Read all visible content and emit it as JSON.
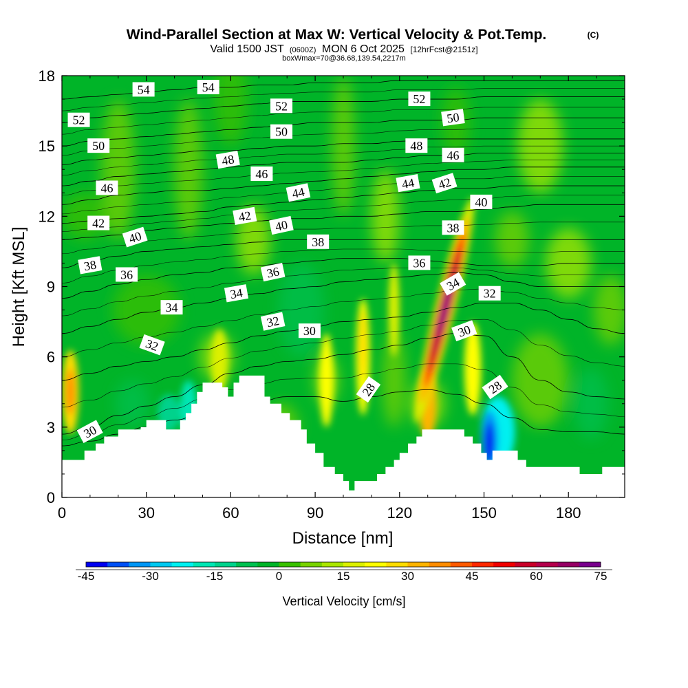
{
  "chart_data": {
    "type": "heatmap",
    "title": "Wind-Parallel Section at Max W: Vertical Velocity & Pot.Temp.",
    "title_mark": "(C)",
    "subtitle": {
      "valid": "Valid 1500 JST",
      "z": "(0600Z)",
      "date": "MON 6 Oct 2025",
      "fcst": "[12hrFcst@2151z]"
    },
    "subtitle2": "boxWmax=70@36.68,139.54,2217m",
    "xlabel": "Distance [nm]",
    "ylabel": "Height [Kft MSL]",
    "xlim": [
      0,
      200
    ],
    "ylim": [
      0,
      18
    ],
    "xticks": [
      0,
      30,
      60,
      90,
      120,
      150,
      180
    ],
    "yticks": [
      0,
      3,
      6,
      9,
      12,
      15,
      18
    ],
    "colorbar": {
      "label": "Vertical Velocity [cm/s]",
      "ticks": [
        -45,
        -30,
        -15,
        0,
        15,
        30,
        45,
        60,
        75
      ],
      "colors": [
        "#0000f0",
        "#0050f5",
        "#0096f5",
        "#00c8f0",
        "#00f0f0",
        "#00e6b4",
        "#00d28c",
        "#00c050",
        "#00b428",
        "#38c000",
        "#78d200",
        "#aae600",
        "#dcf000",
        "#ffff00",
        "#ffdc00",
        "#ffb400",
        "#ff8c00",
        "#ff5a00",
        "#ff2800",
        "#f00000",
        "#c80028",
        "#b4004b",
        "#960064",
        "#78008c"
      ]
    },
    "terrain_height_kft": [
      [
        0,
        1.6
      ],
      [
        5,
        1.6
      ],
      [
        8,
        2.0
      ],
      [
        12,
        2.3
      ],
      [
        15,
        2.6
      ],
      [
        20,
        2.9
      ],
      [
        28,
        3.0
      ],
      [
        30,
        3.3
      ],
      [
        36,
        3.3
      ],
      [
        37,
        2.9
      ],
      [
        40,
        2.9
      ],
      [
        42,
        3.3
      ],
      [
        44,
        3.6
      ],
      [
        46,
        4.0
      ],
      [
        48,
        4.5
      ],
      [
        50,
        4.9
      ],
      [
        55,
        4.9
      ],
      [
        57,
        4.7
      ],
      [
        59,
        4.3
      ],
      [
        61,
        4.9
      ],
      [
        63,
        5.2
      ],
      [
        65,
        5.2
      ],
      [
        68,
        5.2
      ],
      [
        70,
        5.2
      ],
      [
        72,
        4.3
      ],
      [
        74,
        4.0
      ],
      [
        78,
        3.6
      ],
      [
        81,
        3.3
      ],
      [
        85,
        2.9
      ],
      [
        87,
        2.3
      ],
      [
        90,
        1.9
      ],
      [
        93,
        1.3
      ],
      [
        97,
        1.0
      ],
      [
        100,
        0.7
      ],
      [
        102,
        0.3
      ],
      [
        104,
        0.7
      ],
      [
        110,
        0.7
      ],
      [
        112,
        1.0
      ],
      [
        115,
        1.3
      ],
      [
        118,
        1.6
      ],
      [
        120,
        1.9
      ],
      [
        123,
        2.3
      ],
      [
        126,
        2.6
      ],
      [
        128,
        2.9
      ],
      [
        135,
        2.9
      ],
      [
        140,
        2.9
      ],
      [
        143,
        2.6
      ],
      [
        146,
        2.3
      ],
      [
        149,
        1.9
      ],
      [
        151,
        1.6
      ],
      [
        153,
        2.0
      ],
      [
        158,
        2.0
      ],
      [
        162,
        1.6
      ],
      [
        165,
        1.3
      ],
      [
        183,
        1.3
      ],
      [
        184,
        1.0
      ],
      [
        190,
        1.0
      ],
      [
        192,
        1.3
      ],
      [
        200,
        1.3
      ]
    ],
    "vertical_velocity_features": [
      {
        "x": 136,
        "y": 8.0,
        "w": 70,
        "desc": "max updraft"
      },
      {
        "x": 152,
        "y": 2.5,
        "w": -40,
        "desc": "downdraft"
      },
      {
        "x": 3,
        "y": 4.5,
        "w": 25
      },
      {
        "x": 107,
        "y": 6.0,
        "w": 20
      },
      {
        "x": 45,
        "y": 3.8,
        "w": -20
      }
    ],
    "theta_contours_C": [
      {
        "value": 28,
        "y_kft": [
          2.2,
          2.4,
          2.7,
          3.0,
          3.3,
          3.6,
          3.9,
          4.1,
          4.3,
          4.3,
          4.1,
          4.3,
          4.5,
          4.6,
          4.4,
          4.0,
          3.4,
          2.9,
          2.8,
          2.8,
          2.7
        ]
      },
      {
        "value": 30,
        "y_kft": [
          2.7,
          3.0,
          3.5,
          3.9,
          4.3,
          4.8,
          5.3,
          5.6,
          5.8,
          5.9,
          6.1,
          6.3,
          6.5,
          6.8,
          7.0,
          6.9,
          6.0,
          5.0,
          4.5,
          4.3,
          4.2
        ]
      },
      {
        "value": 32,
        "y_kft": [
          5.0,
          5.3,
          5.6,
          5.8,
          6.0,
          6.3,
          6.6,
          6.9,
          7.1,
          7.3,
          7.5,
          7.6,
          7.7,
          7.9,
          8.1,
          8.3,
          8.3,
          8.0,
          7.6,
          7.2,
          7.0
        ]
      },
      {
        "value": 34,
        "y_kft": [
          7.0,
          7.3,
          7.6,
          7.9,
          8.1,
          8.3,
          8.5,
          8.7,
          8.9,
          9.0,
          9.2,
          9.3,
          9.4,
          9.5,
          9.6,
          9.5,
          9.2,
          9.0,
          9.0,
          9.0,
          9.0
        ]
      },
      {
        "value": 36,
        "y_kft": [
          8.5,
          8.8,
          9.1,
          9.3,
          9.5,
          9.6,
          9.8,
          9.9,
          10.0,
          10.1,
          10.2,
          10.2,
          10.2,
          10.1,
          10.0,
          9.9,
          9.9,
          9.9,
          10.0,
          10.0,
          10.0
        ]
      },
      {
        "value": 38,
        "y_kft": [
          9.8,
          10.1,
          10.3,
          10.5,
          10.6,
          10.7,
          10.8,
          10.9,
          11.0,
          11.0,
          11.0,
          11.0,
          11.0,
          11.0,
          11.0,
          11.0,
          11.0,
          11.0,
          11.0,
          11.0,
          11.0
        ]
      },
      {
        "value": 40,
        "y_kft": [
          11.0,
          11.1,
          11.2,
          11.4,
          11.5,
          11.6,
          11.7,
          11.8,
          11.9,
          11.9,
          12.0,
          12.0,
          12.1,
          12.2,
          12.2,
          12.3,
          12.4,
          12.5,
          12.5,
          12.5,
          12.5
        ]
      },
      {
        "value": 42,
        "y_kft": [
          11.7,
          11.8,
          11.9,
          12.0,
          12.1,
          12.2,
          12.4,
          12.5,
          12.6,
          12.7,
          12.8,
          12.9,
          13.0,
          13.1,
          13.2,
          13.2,
          13.3,
          13.3,
          13.3,
          13.3,
          13.3
        ]
      },
      {
        "value": 44,
        "y_kft": [
          12.5,
          12.7,
          12.9,
          13.0,
          13.1,
          13.1,
          13.2,
          13.3,
          13.4,
          13.5,
          13.6,
          13.7,
          13.8,
          13.9,
          14.0,
          14.0,
          14.1,
          14.1,
          14.1,
          14.1,
          14.1
        ]
      },
      {
        "value": 46,
        "y_kft": [
          13.3,
          13.5,
          13.7,
          13.8,
          13.9,
          14.0,
          14.1,
          14.2,
          14.3,
          14.3,
          14.3,
          14.4,
          14.5,
          14.6,
          14.6,
          14.7,
          14.7,
          14.7,
          14.7,
          14.7,
          14.7
        ]
      },
      {
        "value": 48,
        "y_kft": [
          14.2,
          14.4,
          14.5,
          14.6,
          14.7,
          14.8,
          14.8,
          14.9,
          15.0,
          15.0,
          15.1,
          15.1,
          15.2,
          15.3,
          15.3,
          15.3,
          15.3,
          15.3,
          15.3,
          15.3,
          15.3
        ]
      },
      {
        "value": 50,
        "y_kft": [
          15.0,
          15.2,
          15.3,
          15.4,
          15.5,
          15.6,
          15.7,
          15.8,
          15.9,
          16.0,
          16.0,
          16.0,
          16.1,
          16.1,
          16.1,
          16.2,
          16.2,
          16.2,
          16.2,
          16.2,
          16.2
        ]
      },
      {
        "value": 52,
        "y_kft": [
          16.0,
          16.2,
          16.3,
          16.4,
          16.5,
          16.6,
          16.7,
          16.8,
          16.9,
          16.9,
          16.9,
          16.9,
          17.0,
          17.0,
          17.0,
          17.1,
          17.1,
          17.1,
          17.1,
          17.1,
          17.1
        ]
      },
      {
        "value": 54,
        "y_kft": [
          17.0,
          17.1,
          17.2,
          17.3,
          17.4,
          17.5,
          17.5,
          17.6,
          17.6,
          17.7,
          17.7,
          17.7,
          17.8,
          17.8,
          17.8,
          17.8,
          17.8,
          17.8,
          17.8,
          17.8,
          17.8
        ]
      }
    ],
    "contour_labels": [
      {
        "text": "54",
        "x": 29,
        "y": 17.4,
        "rot": 0
      },
      {
        "text": "54",
        "x": 52,
        "y": 17.5,
        "rot": 0
      },
      {
        "text": "52",
        "x": 6,
        "y": 16.1,
        "rot": 0
      },
      {
        "text": "52",
        "x": 78,
        "y": 16.7,
        "rot": 0
      },
      {
        "text": "52",
        "x": 127,
        "y": 17.0,
        "rot": 0
      },
      {
        "text": "50",
        "x": 13,
        "y": 15.0,
        "rot": 0
      },
      {
        "text": "50",
        "x": 78,
        "y": 15.6,
        "rot": 0
      },
      {
        "text": "50",
        "x": 139,
        "y": 16.2,
        "rot": -8
      },
      {
        "text": "48",
        "x": 59,
        "y": 14.4,
        "rot": -10
      },
      {
        "text": "48",
        "x": 126,
        "y": 15.0,
        "rot": 0
      },
      {
        "text": "46",
        "x": 16,
        "y": 13.2,
        "rot": 0
      },
      {
        "text": "46",
        "x": 71,
        "y": 13.8,
        "rot": 0
      },
      {
        "text": "46",
        "x": 139,
        "y": 14.6,
        "rot": 0
      },
      {
        "text": "44",
        "x": 84,
        "y": 13.0,
        "rot": -12
      },
      {
        "text": "44",
        "x": 123,
        "y": 13.4,
        "rot": -10
      },
      {
        "text": "42",
        "x": 13,
        "y": 11.7,
        "rot": 0
      },
      {
        "text": "42",
        "x": 65,
        "y": 12.0,
        "rot": -10
      },
      {
        "text": "42",
        "x": 136,
        "y": 13.4,
        "rot": -18
      },
      {
        "text": "40",
        "x": 26,
        "y": 11.1,
        "rot": -18
      },
      {
        "text": "40",
        "x": 78,
        "y": 11.6,
        "rot": -12
      },
      {
        "text": "40",
        "x": 149,
        "y": 12.6,
        "rot": 0
      },
      {
        "text": "38",
        "x": 10,
        "y": 9.9,
        "rot": -10
      },
      {
        "text": "38",
        "x": 91,
        "y": 10.9,
        "rot": 0
      },
      {
        "text": "38",
        "x": 139,
        "y": 11.5,
        "rot": 0
      },
      {
        "text": "36",
        "x": 23,
        "y": 9.5,
        "rot": 0
      },
      {
        "text": "36",
        "x": 75,
        "y": 9.6,
        "rot": -12
      },
      {
        "text": "36",
        "x": 127,
        "y": 10.0,
        "rot": 0
      },
      {
        "text": "34",
        "x": 39,
        "y": 8.1,
        "rot": 0
      },
      {
        "text": "34",
        "x": 62,
        "y": 8.7,
        "rot": -10
      },
      {
        "text": "34",
        "x": 139,
        "y": 9.1,
        "rot": -30
      },
      {
        "text": "32",
        "x": 32,
        "y": 6.5,
        "rot": 20
      },
      {
        "text": "32",
        "x": 75,
        "y": 7.5,
        "rot": -12
      },
      {
        "text": "32",
        "x": 152,
        "y": 8.7,
        "rot": 0
      },
      {
        "text": "30",
        "x": 88,
        "y": 7.1,
        "rot": 0
      },
      {
        "text": "30",
        "x": 10,
        "y": 2.8,
        "rot": -28
      },
      {
        "text": "30",
        "x": 143,
        "y": 7.1,
        "rot": -20
      },
      {
        "text": "28",
        "x": 109,
        "y": 4.6,
        "rot": -55
      },
      {
        "text": "28",
        "x": 154,
        "y": 4.7,
        "rot": -35
      }
    ]
  }
}
